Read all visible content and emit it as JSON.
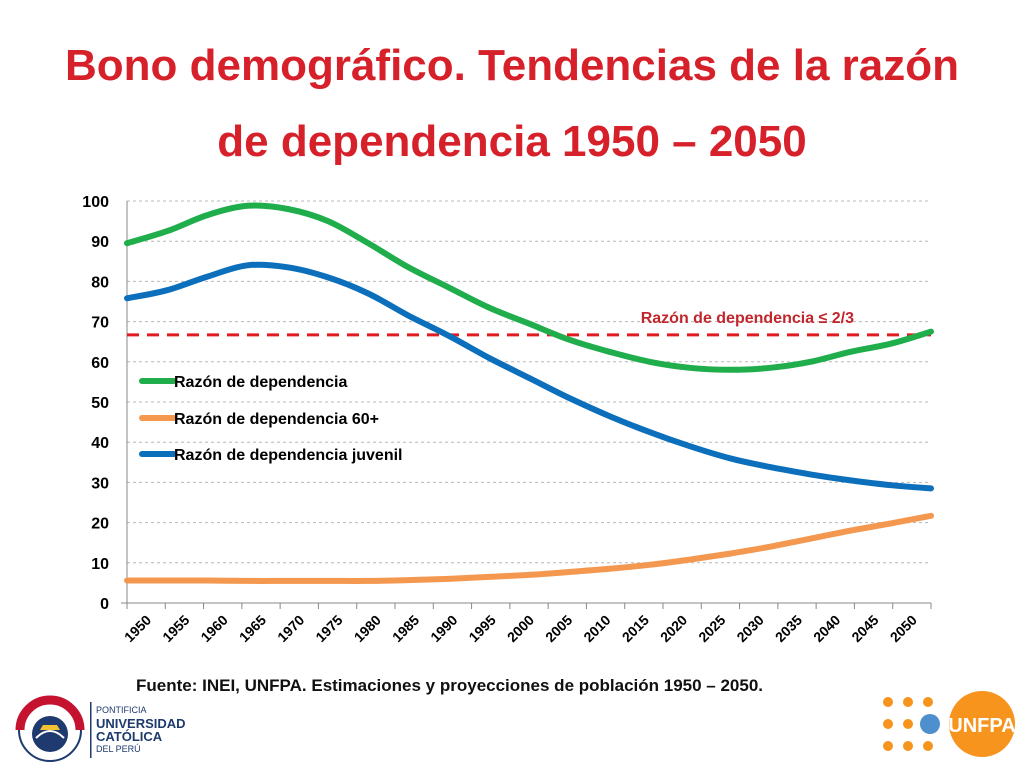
{
  "title": {
    "line1": "Bono demográfico. Tendencias de la razón",
    "line2": "de dependencia 1950 – 2050"
  },
  "source": "Fuente: INEI, UNFPA. Estimaciones y proyecciones de población 1950 – 2050.",
  "logos": {
    "pucp": {
      "motto": "ET LUX IN TENEBRIS LUCET",
      "year": "MCMXVII",
      "line1": "PONTIFICIA",
      "line2": "UNIVERSIDAD",
      "line3": "CATÓLICA",
      "line4": "DEL PERÚ"
    },
    "unfpa": {
      "name": "UNFPA"
    }
  },
  "colors": {
    "title": "#d6202a",
    "green": "#1fae4b",
    "orange": "#f4984f",
    "blue": "#0b6fbc",
    "threshold": "#e11b22"
  },
  "chart_data": {
    "type": "line",
    "x": [
      1950,
      1955,
      1960,
      1965,
      1970,
      1975,
      1980,
      1985,
      1990,
      1995,
      2000,
      2005,
      2010,
      2015,
      2020,
      2025,
      2030,
      2035,
      2040,
      2045,
      2050
    ],
    "xticks": [
      "1950",
      "1955",
      "1960",
      "1965",
      "1970",
      "1975",
      "1980",
      "1985",
      "1990",
      "1995",
      "2000",
      "2005",
      "2010",
      "2015",
      "2020",
      "2025",
      "2030",
      "2035",
      "2040",
      "2045",
      "2050"
    ],
    "ylim": [
      0,
      100
    ],
    "yticks": [
      0,
      10,
      20,
      30,
      40,
      50,
      60,
      70,
      80,
      90,
      100
    ],
    "grid": true,
    "series": [
      {
        "name": "Razón de dependencia",
        "color": "#1fae4b",
        "values": [
          89.5,
          92.5,
          96.5,
          98.8,
          98,
          95,
          89.5,
          83.5,
          78.5,
          73.5,
          69.5,
          65.5,
          62.5,
          60,
          58.5,
          58,
          58.5,
          60,
          62.5,
          64.5,
          67.5
        ]
      },
      {
        "name": "Razón de dependencia 60+",
        "color": "#f4984f",
        "values": [
          5.6,
          5.6,
          5.6,
          5.5,
          5.5,
          5.5,
          5.5,
          5.7,
          6,
          6.5,
          7,
          7.7,
          8.5,
          9.5,
          10.8,
          12.3,
          14,
          16,
          18,
          19.8,
          21.7
        ]
      },
      {
        "name": "Razón de dependencia juvenil",
        "color": "#0b6fbc",
        "values": [
          75.8,
          77.8,
          81.2,
          84,
          83.5,
          81,
          77,
          71.5,
          66.5,
          61,
          56,
          51,
          46.5,
          42.5,
          39,
          36,
          33.8,
          32,
          30.5,
          29.3,
          28.5
        ]
      }
    ],
    "threshold": {
      "value": 66.7,
      "label": "Razón de dependencia ≤ 2/3",
      "color": "#e11b22"
    },
    "legend_position": "middle-left"
  }
}
